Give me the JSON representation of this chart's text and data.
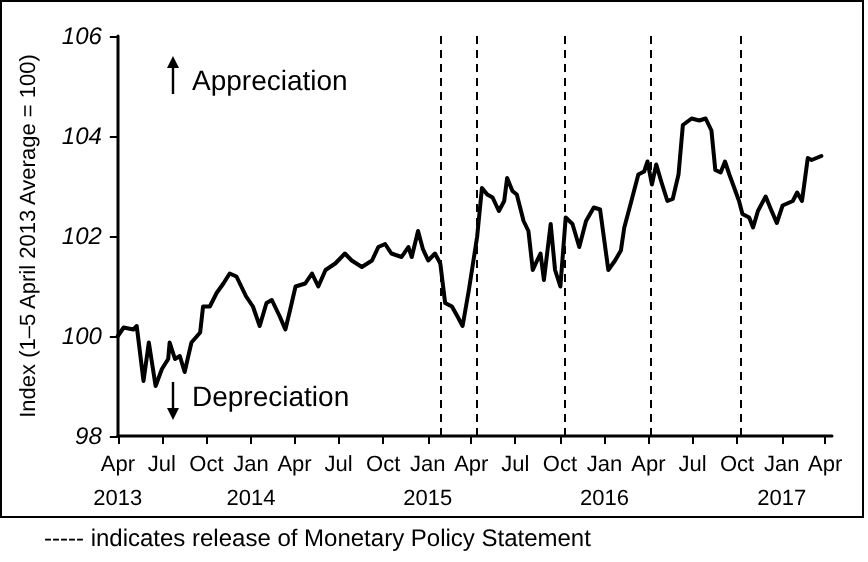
{
  "chart_data": {
    "type": "line",
    "ylabel": "Index (1–5 April 2013 Average = 100)",
    "x": [
      "2013-04-01",
      "2013-04-13",
      "2013-05-03",
      "2013-05-10",
      "2013-05-24",
      "2013-06-04",
      "2013-06-18",
      "2013-07-01",
      "2013-07-14",
      "2013-07-17",
      "2013-07-28",
      "2013-08-07",
      "2013-08-17",
      "2013-08-31",
      "2013-09-18",
      "2013-09-24",
      "2013-10-08",
      "2013-10-22",
      "2013-11-05",
      "2013-11-18",
      "2013-12-02",
      "2013-12-22",
      "2014-01-05",
      "2014-01-19",
      "2014-02-02",
      "2014-02-13",
      "2014-03-01",
      "2014-03-13",
      "2014-03-23",
      "2014-04-03",
      "2014-04-23",
      "2014-05-07",
      "2014-05-20",
      "2014-06-04",
      "2014-06-24",
      "2014-07-14",
      "2014-07-28",
      "2014-08-18",
      "2014-09-08",
      "2014-09-21",
      "2014-10-05",
      "2014-10-18",
      "2014-11-08",
      "2014-11-22",
      "2014-11-29",
      "2014-12-12",
      "2014-12-22",
      "2015-01-02",
      "2015-01-16",
      "2015-01-27",
      "2015-02-06",
      "2015-02-20",
      "2015-03-03",
      "2015-03-14",
      "2015-03-27",
      "2015-04-13",
      "2015-04-23",
      "2015-05-04",
      "2015-05-15",
      "2015-05-28",
      "2015-06-08",
      "2015-06-14",
      "2015-06-25",
      "2015-07-04",
      "2015-07-18",
      "2015-07-28",
      "2015-08-06",
      "2015-08-15",
      "2015-08-22",
      "2015-08-29",
      "2015-09-12",
      "2015-09-21",
      "2015-10-02",
      "2015-10-13",
      "2015-10-27",
      "2015-11-10",
      "2015-11-24",
      "2015-12-10",
      "2015-12-23",
      "2016-01-09",
      "2016-01-23",
      "2016-02-04",
      "2016-02-11",
      "2016-02-24",
      "2016-03-11",
      "2016-03-23",
      "2016-03-30",
      "2016-04-08",
      "2016-04-17",
      "2016-04-27",
      "2016-05-10",
      "2016-05-21",
      "2016-06-02",
      "2016-06-11",
      "2016-06-29",
      "2016-07-15",
      "2016-07-28",
      "2016-08-09",
      "2016-08-17",
      "2016-08-28",
      "2016-09-06",
      "2016-09-15",
      "2016-10-05",
      "2016-10-12",
      "2016-10-26",
      "2016-11-03",
      "2016-11-13",
      "2016-11-29",
      "2016-12-10",
      "2016-12-22",
      "2017-01-03",
      "2017-01-24",
      "2017-02-02",
      "2017-02-12",
      "2017-02-24",
      "2017-03-04",
      "2017-03-24"
    ],
    "series": [
      {
        "color": "#000000",
        "values": [
          100.0,
          100.17,
          100.13,
          100.2,
          99.1,
          99.87,
          99.0,
          99.34,
          99.54,
          99.87,
          99.54,
          99.6,
          99.28,
          99.87,
          100.07,
          100.59,
          100.59,
          100.86,
          101.05,
          101.25,
          101.19,
          100.79,
          100.59,
          100.2,
          100.66,
          100.72,
          100.4,
          100.13,
          100.53,
          100.99,
          101.05,
          101.25,
          100.99,
          101.32,
          101.45,
          101.65,
          101.51,
          101.38,
          101.51,
          101.78,
          101.84,
          101.65,
          101.58,
          101.78,
          101.58,
          102.1,
          101.74,
          101.51,
          101.65,
          101.45,
          100.66,
          100.59,
          100.4,
          100.2,
          100.92,
          101.98,
          102.96,
          102.83,
          102.77,
          102.5,
          102.7,
          103.16,
          102.9,
          102.83,
          102.3,
          102.1,
          101.32,
          101.51,
          101.65,
          101.12,
          102.24,
          101.32,
          100.99,
          102.37,
          102.24,
          101.78,
          102.3,
          102.57,
          102.53,
          101.32,
          101.51,
          101.71,
          102.17,
          102.64,
          103.23,
          103.29,
          103.49,
          103.03,
          103.43,
          103.1,
          102.7,
          102.74,
          103.23,
          104.22,
          104.35,
          104.31,
          104.35,
          104.11,
          103.32,
          103.27,
          103.49,
          103.23,
          102.7,
          102.44,
          102.37,
          102.17,
          102.5,
          102.79,
          102.53,
          102.26,
          102.61,
          102.7,
          102.87,
          102.7,
          103.56,
          103.52,
          103.6
        ]
      }
    ],
    "xlim": [
      "2013-04-01",
      "2017-04-15"
    ],
    "xticks": [
      {
        "value": "2013-04-01",
        "label": "Apr\n2013"
      },
      {
        "value": "2013-07-01",
        "label": "Jul"
      },
      {
        "value": "2013-10-01",
        "label": "Oct"
      },
      {
        "value": "2014-01-01",
        "label": "Jan\n2014"
      },
      {
        "value": "2014-04-01",
        "label": "Apr"
      },
      {
        "value": "2014-07-01",
        "label": "Jul"
      },
      {
        "value": "2014-10-01",
        "label": "Oct"
      },
      {
        "value": "2015-01-01",
        "label": "Jan\n2015"
      },
      {
        "value": "2015-04-01",
        "label": "Apr"
      },
      {
        "value": "2015-07-01",
        "label": "Jul"
      },
      {
        "value": "2015-10-01",
        "label": "Oct"
      },
      {
        "value": "2016-01-01",
        "label": "Jan\n2016"
      },
      {
        "value": "2016-04-01",
        "label": "Apr"
      },
      {
        "value": "2016-07-01",
        "label": "Jul"
      },
      {
        "value": "2016-10-01",
        "label": "Oct"
      },
      {
        "value": "2017-01-01",
        "label": "Jan\n2017"
      },
      {
        "value": "2017-04-01",
        "label": "Apr"
      }
    ],
    "ylim": [
      98,
      106
    ],
    "yticks": [
      98,
      100,
      102,
      104,
      106
    ],
    "grid": false,
    "marker": "none",
    "ref_lines": [
      {
        "axis": "x",
        "value": "2015-01-27",
        "color": "#000000",
        "line_style": "dashed"
      },
      {
        "axis": "x",
        "value": "2015-04-10",
        "color": "#000000",
        "line_style": "dashed"
      },
      {
        "axis": "x",
        "value": "2015-10-12",
        "color": "#000000",
        "line_style": "dashed"
      },
      {
        "axis": "x",
        "value": "2016-04-06",
        "color": "#000000",
        "line_style": "dashed"
      },
      {
        "axis": "x",
        "value": "2016-10-07",
        "color": "#000000",
        "line_style": "dashed"
      }
    ],
    "annotations": [
      "Appreciation",
      "Depreciation",
      "----- indicates release of Monetary Policy Statement"
    ]
  }
}
